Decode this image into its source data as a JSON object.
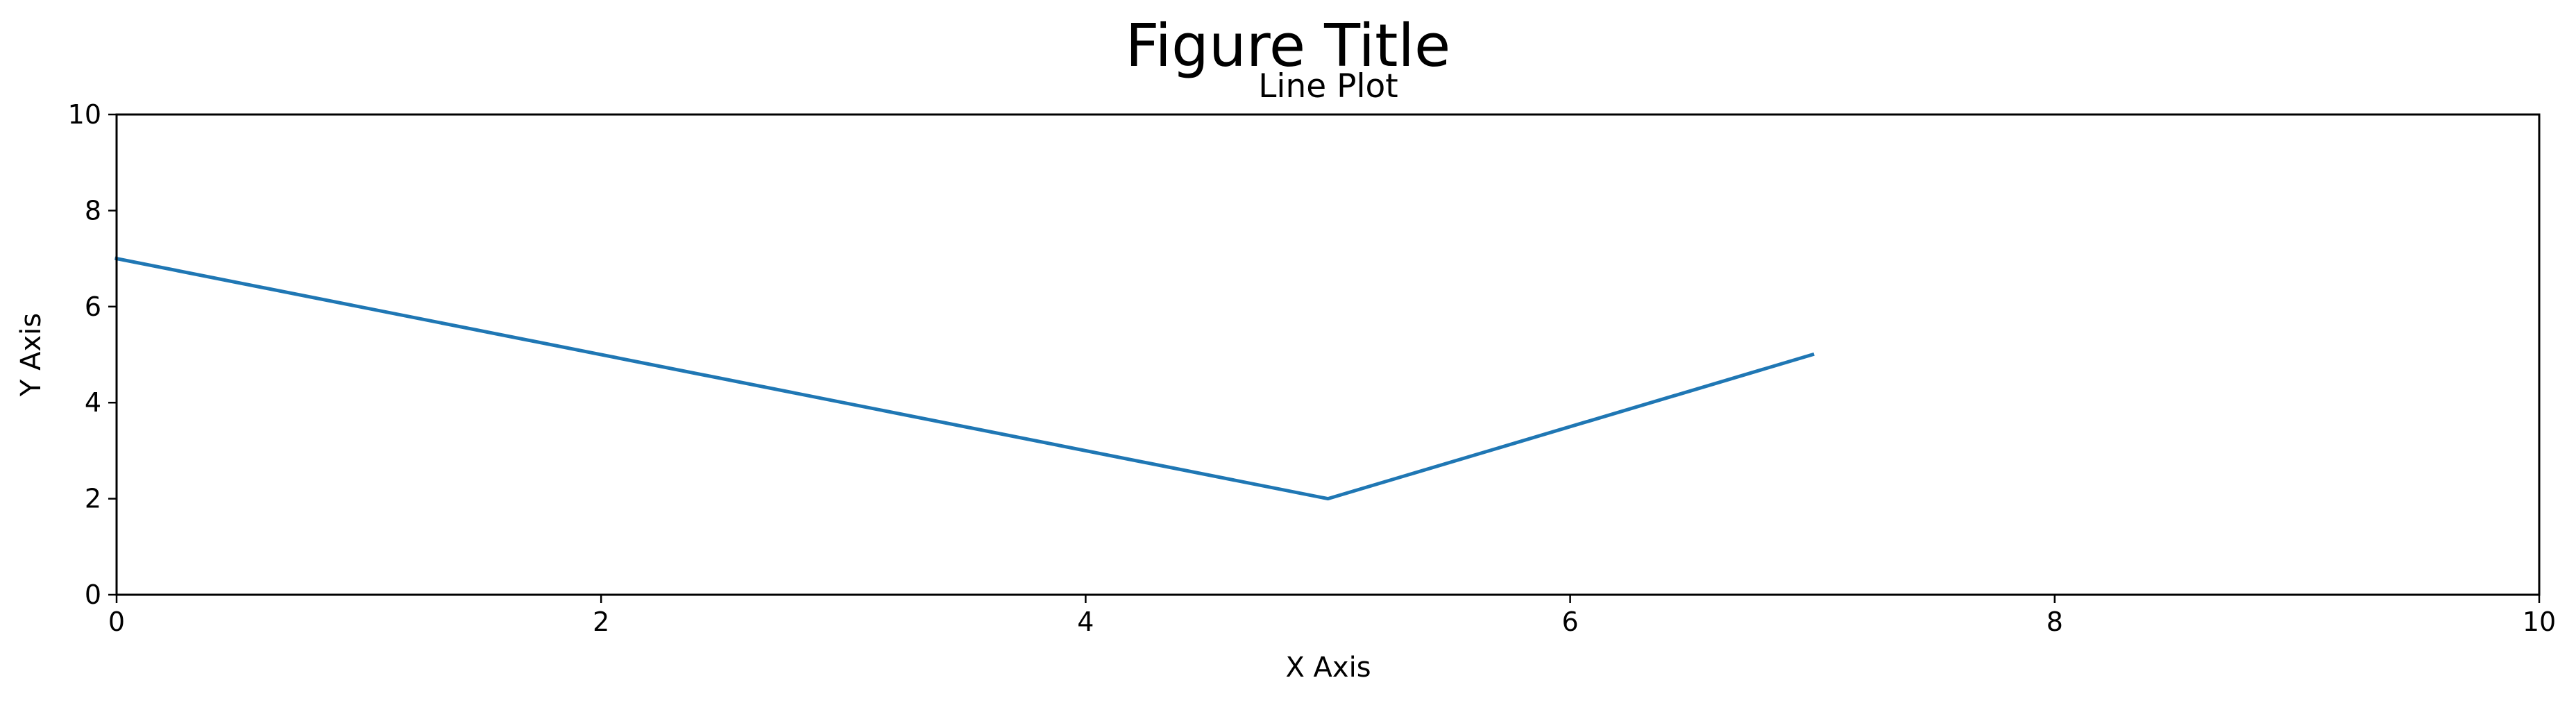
{
  "chart_data": {
    "type": "line",
    "suptitle": "Figure Title",
    "title": "Line Plot",
    "xlabel": "X Axis",
    "ylabel": "Y Axis",
    "xlim": [
      0,
      10
    ],
    "ylim": [
      0,
      10
    ],
    "xticks": [
      0,
      2,
      4,
      6,
      8,
      10
    ],
    "yticks": [
      0,
      2,
      4,
      6,
      8,
      10
    ],
    "xtick_labels": [
      "0",
      "2",
      "4",
      "6",
      "8",
      "10"
    ],
    "ytick_labels": [
      "0",
      "2",
      "4",
      "6",
      "8",
      "10"
    ],
    "grid": false,
    "series": [
      {
        "name": "line",
        "x": [
          0,
          5,
          7
        ],
        "y": [
          7,
          2,
          5
        ],
        "color": "#1f77b4"
      }
    ]
  }
}
